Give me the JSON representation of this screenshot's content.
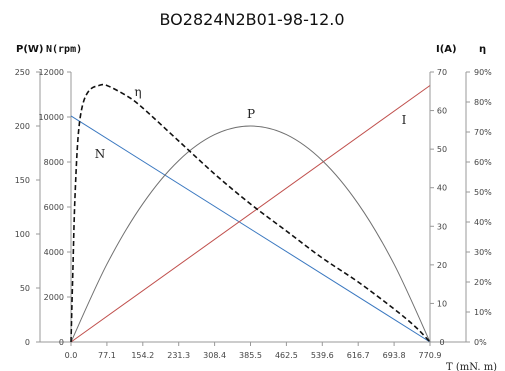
{
  "chart_data": {
    "type": "line",
    "title": "BO2824N2B01-98-12.0",
    "xlabel": "T (mN. m)",
    "x_ticks": [
      "0.0",
      "77.1",
      "154.2",
      "231.3",
      "308.4",
      "385.5",
      "462.5",
      "539.6",
      "616.7",
      "693.8",
      "770.9"
    ],
    "xlim": [
      0,
      770.9
    ],
    "axes": {
      "P": {
        "label": "P(W)",
        "range": [
          0,
          250
        ],
        "ticks": [
          "0",
          "50",
          "100",
          "150",
          "200",
          "250"
        ],
        "position": "left-outer"
      },
      "N": {
        "label": "N(rpm)",
        "range": [
          0,
          12000
        ],
        "ticks": [
          "0",
          "2000",
          "4000",
          "6000",
          "8000",
          "10000",
          "12000"
        ],
        "position": "left-inner"
      },
      "I": {
        "label": "I(A)",
        "range": [
          0,
          70
        ],
        "ticks": [
          "0",
          "10",
          "20",
          "30",
          "40",
          "50",
          "60",
          "70"
        ],
        "position": "right-inner"
      },
      "eta": {
        "label": "η",
        "range": [
          0,
          90
        ],
        "ticks": [
          "0%",
          "10%",
          "20%",
          "30%",
          "40%",
          "50%",
          "60%",
          "70%",
          "80%",
          "90%"
        ],
        "position": "right-outer"
      }
    },
    "series": [
      {
        "name": "N",
        "axis": "N",
        "color": "#3a78c0",
        "style": "solid",
        "x": [
          0,
          770.9
        ],
        "values": [
          10050,
          0
        ]
      },
      {
        "name": "I",
        "axis": "I",
        "color": "#c0504d",
        "style": "solid",
        "x": [
          0,
          770.9
        ],
        "values": [
          0,
          66.5
        ]
      },
      {
        "name": "P",
        "axis": "P",
        "color": "#707070",
        "style": "solid",
        "x": [
          0,
          77.1,
          154.2,
          231.3,
          308.4,
          385.5,
          462.5,
          539.6,
          616.7,
          693.8,
          770.9
        ],
        "values": [
          0,
          72,
          128,
          168,
          192,
          200,
          192,
          168,
          128,
          72,
          0
        ]
      },
      {
        "name": "η",
        "axis": "eta",
        "color": "#111111",
        "style": "dashed",
        "x": [
          0,
          4,
          8,
          15,
          25,
          40,
          60,
          77.1,
          120,
          154.2,
          231.3,
          308.4,
          385.5,
          462.5,
          539.6,
          616.7,
          693.8,
          740,
          770.9
        ],
        "values": [
          0,
          24,
          46,
          68,
          79,
          84,
          85.5,
          85.5,
          82,
          78,
          67,
          56,
          46,
          37,
          28,
          20,
          11,
          5,
          0
        ]
      }
    ],
    "grid": false,
    "legend": "none"
  }
}
